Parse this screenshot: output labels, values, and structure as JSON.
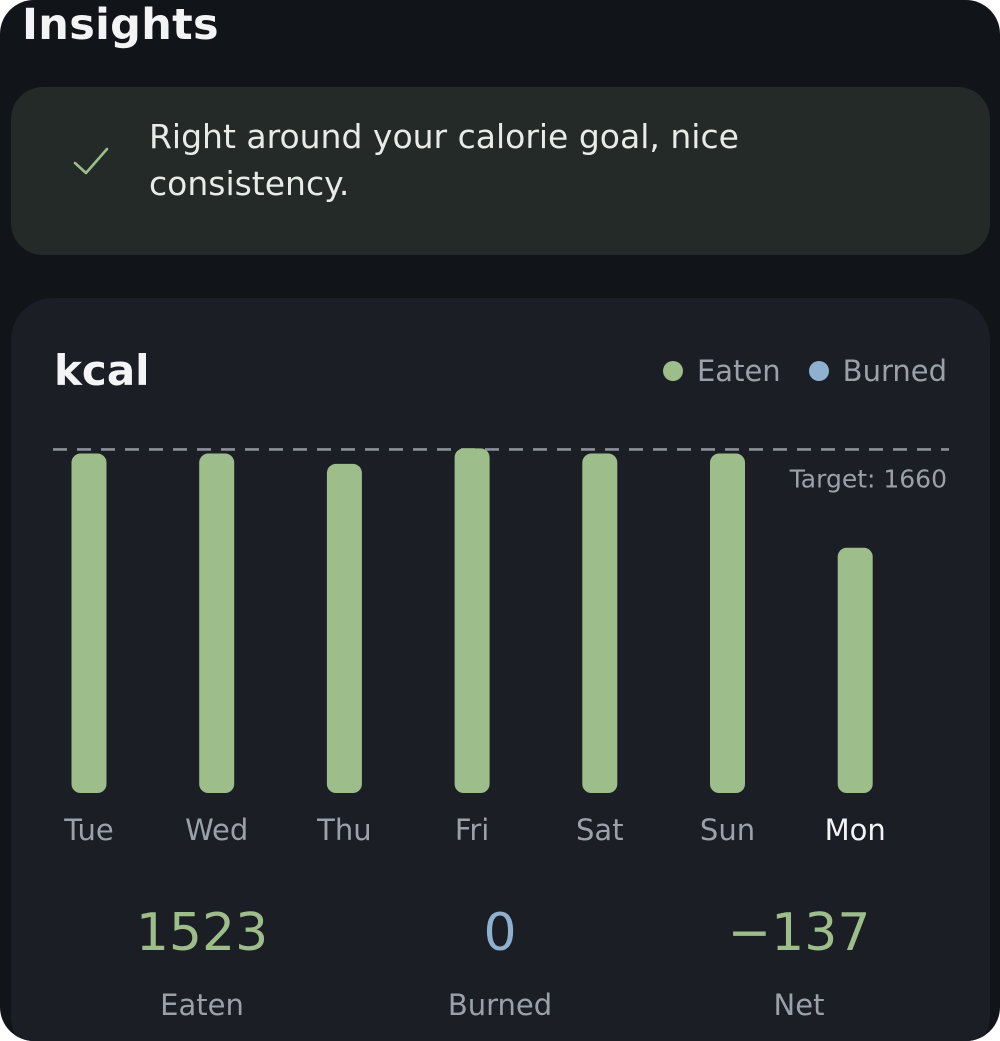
{
  "page": {
    "section_title": "Insights"
  },
  "insight": {
    "icon": "check-icon",
    "message": "Right around your calorie goal, nice consistency."
  },
  "chart_card": {
    "title": "kcal",
    "legend": [
      {
        "label": "Eaten",
        "color": "#9dbd8a"
      },
      {
        "label": "Burned",
        "color": "#8fb0cf"
      }
    ]
  },
  "chart_data": {
    "type": "bar",
    "title": "kcal",
    "categories": [
      "Tue",
      "Wed",
      "Thu",
      "Fri",
      "Sat",
      "Sun",
      "Mon"
    ],
    "series": [
      {
        "name": "Eaten",
        "color": "#9dbd8a",
        "values": [
          1640,
          1640,
          1590,
          1665,
          1640,
          1640,
          1185
        ]
      },
      {
        "name": "Burned",
        "color": "#8fb0cf",
        "values": [
          0,
          0,
          0,
          0,
          0,
          0,
          0
        ]
      }
    ],
    "target": {
      "label": "Target: 1660",
      "value": 1660
    },
    "selected_category": "Mon",
    "ylim": [
      0,
      1720
    ],
    "grid": false,
    "legend_position": "top-right"
  },
  "stats": [
    {
      "value": "1523",
      "label": "Eaten",
      "color": "#9dbd8a"
    },
    {
      "value": "0",
      "label": "Burned",
      "color": "#8fb0cf"
    },
    {
      "value": "−137",
      "label": "Net",
      "color": "#9dbd8a"
    }
  ],
  "colors": {
    "background": "#111418",
    "insight_card": "#232a27",
    "chart_card": "#1b1f25",
    "text_primary": "#f3f4f6",
    "text_muted": "#9aa1aa",
    "accent_green": "#9dbd8a",
    "accent_blue": "#8fb0cf"
  }
}
